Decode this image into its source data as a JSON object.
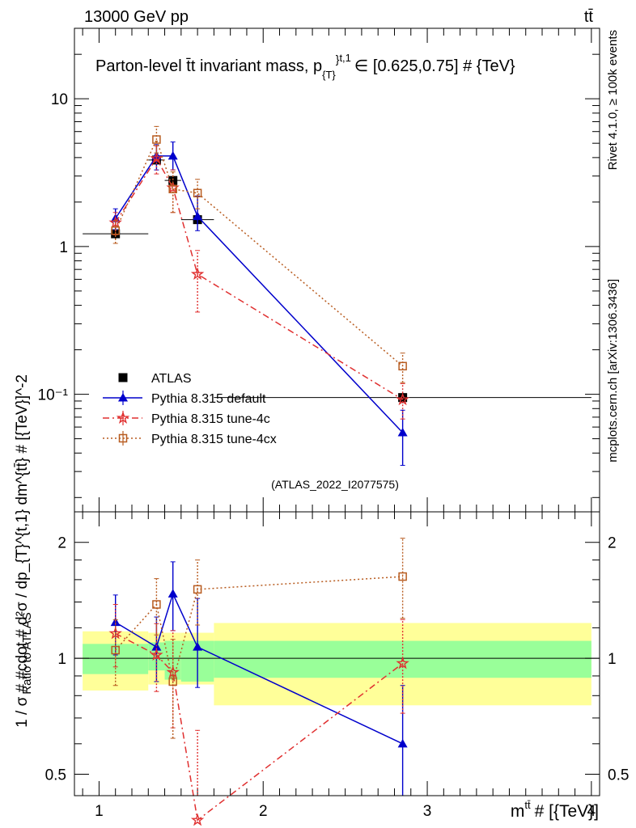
{
  "header": {
    "left": "13000 GeV pp",
    "right": "tt̄"
  },
  "side": {
    "rivet": "Rivet 4.1.0, ≥ 100k events",
    "mcplots": "mcplots.cern.ch [arXiv:1306.3436]"
  },
  "chart_data": [
    {
      "type": "line",
      "panel": "main",
      "title": "Parton-level t̄t invariant mass, p_{T}^{t,1} ∈ [0.625,0.75] # {TeV}",
      "title_parts": {
        "main": "Parton-level t̄t invariant mass, p",
        "sub": "{T}",
        "sup": "}",
        "sup2": "t,1",
        "rest": "∈ [0.625,0.75] # {TeV}"
      },
      "ylabel": "1 / σ # #cdot # d²σ / dp_{T}^{t,1} dm^{tt̄} # [{TeV}]^-2",
      "yscale": "log",
      "ylim": [
        0.016,
        30
      ],
      "xlim": [
        0.85,
        4.05
      ],
      "y_ticks": [
        {
          "value": 0.1,
          "label": "10⁻¹"
        },
        {
          "value": 1,
          "label": "1"
        },
        {
          "value": 10,
          "label": "10"
        }
      ],
      "watermark": "(ATLAS_2022_I2077575)",
      "legend_position": "lower-left",
      "series": [
        {
          "name": "ATLAS",
          "color": "#000000",
          "marker": "square-filled",
          "x": [
            1.1,
            1.35,
            1.45,
            1.6,
            2.85
          ],
          "y": [
            1.22,
            3.85,
            2.8,
            1.52,
            0.095
          ],
          "bins": [
            [
              0.9,
              1.3
            ],
            [
              1.3,
              1.4
            ],
            [
              1.4,
              1.5
            ],
            [
              1.5,
              1.7
            ],
            [
              1.7,
              4.0
            ]
          ],
          "err": [
            0.1,
            0.3,
            0.2,
            0.1,
            0.008
          ]
        },
        {
          "name": "Pythia 8.315 default",
          "color": "#0000cc",
          "marker": "triangle",
          "line": "solid",
          "x": [
            1.1,
            1.35,
            1.45,
            1.6,
            2.85
          ],
          "y": [
            1.55,
            4.1,
            4.1,
            1.6,
            0.055
          ],
          "bins": [
            [
              0.9,
              1.3
            ],
            [
              1.3,
              1.4
            ],
            [
              1.4,
              1.5
            ],
            [
              1.5,
              1.7
            ],
            [
              1.7,
              4.0
            ]
          ],
          "err_lo": [
            1.3,
            3.3,
            3.3,
            1.28,
            0.033
          ],
          "err_hi": [
            1.8,
            4.9,
            5.1,
            2.2,
            0.078
          ]
        },
        {
          "name": "Pythia 8.315 tune-4c",
          "color": "#e03030",
          "marker": "star",
          "line": "dashdot",
          "x": [
            1.1,
            1.35,
            1.45,
            1.6,
            2.85
          ],
          "y": [
            1.45,
            3.95,
            2.5,
            0.65,
            0.092
          ],
          "err_lo": [
            1.2,
            3.1,
            1.7,
            0.36,
            0.068
          ],
          "err_hi": [
            1.7,
            4.8,
            3.3,
            0.94,
            0.118
          ]
        },
        {
          "name": "Pythia 8.315 tune-4cx",
          "color": "#b85c20",
          "marker": "square-open",
          "line": "dotted",
          "x": [
            1.1,
            1.35,
            1.45,
            1.6,
            2.85
          ],
          "y": [
            1.28,
            5.3,
            2.45,
            2.3,
            0.155
          ],
          "err_lo": [
            1.05,
            4.3,
            1.7,
            1.8,
            0.12
          ],
          "err_hi": [
            1.5,
            6.5,
            3.2,
            2.85,
            0.19
          ]
        }
      ]
    },
    {
      "type": "line",
      "panel": "ratio",
      "ylabel": "Ratio to ATLAS",
      "xlabel": "m^{tt̄} # [{TeV}]",
      "xlabel_parts": {
        "m": "m",
        "sup": "tt̄",
        "rest": "# [{TeV}]"
      },
      "yscale": "log",
      "ylim": [
        0.44,
        2.4
      ],
      "xlim": [
        0.85,
        4.05
      ],
      "x_ticks": [
        1,
        2,
        3,
        4
      ],
      "y_ticks": [
        0.5,
        1,
        2
      ],
      "bands": {
        "bins": [
          [
            0.9,
            1.3
          ],
          [
            1.3,
            1.4
          ],
          [
            1.4,
            1.5
          ],
          [
            1.5,
            1.7
          ],
          [
            1.7,
            4.0
          ]
        ],
        "inner_color": "#99ff99",
        "outer_color": "#ffff99",
        "inner_lo": [
          0.91,
          0.93,
          0.88,
          0.87,
          0.89
        ],
        "inner_hi": [
          1.09,
          1.1,
          1.11,
          1.11,
          1.11
        ],
        "outer_lo": [
          0.825,
          0.855,
          0.855,
          0.855,
          0.755
        ],
        "outer_hi": [
          1.175,
          1.165,
          1.165,
          1.165,
          1.235
        ]
      },
      "series": [
        {
          "name": "Pythia 8.315 default",
          "color": "#0000cc",
          "marker": "triangle",
          "line": "solid",
          "x": [
            1.1,
            1.35,
            1.45,
            1.6,
            2.85
          ],
          "y": [
            1.24,
            1.07,
            1.47,
            1.07,
            0.6
          ],
          "err_lo": [
            1.02,
            0.87,
            1.18,
            0.84,
            0.36
          ],
          "err_hi": [
            1.46,
            1.28,
            1.78,
            1.43,
            0.85
          ]
        },
        {
          "name": "Pythia 8.315 tune-4c",
          "color": "#e03030",
          "marker": "star",
          "line": "dashdot",
          "x": [
            1.1,
            1.35,
            1.45,
            1.6,
            2.85
          ],
          "y": [
            1.16,
            1.02,
            0.92,
            0.38,
            0.97
          ],
          "err_lo": [
            0.95,
            0.82,
            0.66,
            0.27,
            0.72
          ],
          "err_hi": [
            1.38,
            1.23,
            1.18,
            0.65,
            1.26
          ]
        },
        {
          "name": "Pythia 8.315 tune-4cx",
          "color": "#b85c20",
          "marker": "square-open",
          "line": "dotted",
          "x": [
            1.1,
            1.35,
            1.45,
            1.6,
            2.85
          ],
          "y": [
            1.05,
            1.38,
            0.87,
            1.51,
            1.63
          ],
          "err_lo": [
            0.85,
            1.15,
            0.62,
            1.22,
            1.27
          ],
          "err_hi": [
            1.26,
            1.61,
            1.12,
            1.8,
            2.05
          ]
        }
      ]
    }
  ]
}
